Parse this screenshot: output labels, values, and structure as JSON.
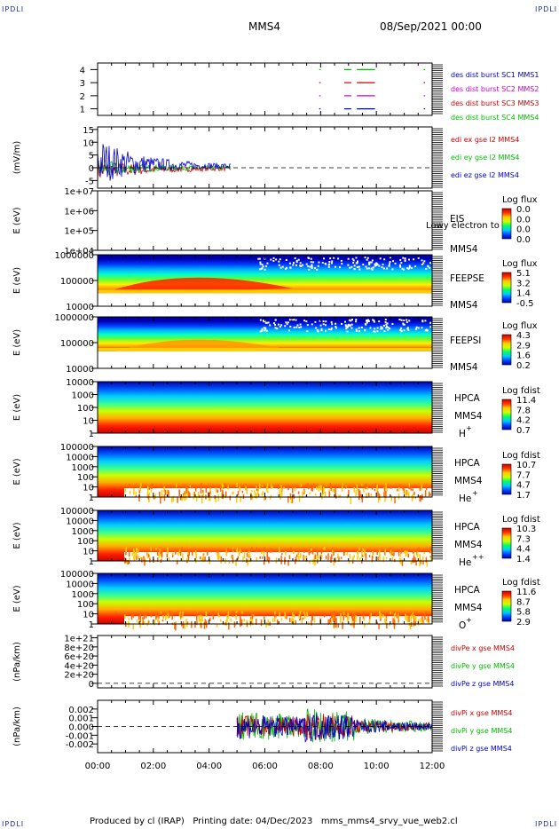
{
  "page": {
    "corner_label": "IPDLI",
    "spacecraft": "MMS4",
    "datetime": "08/Sep/2021 00:00",
    "footer": "Produced by cl (IRAP)   Printing date: 04/Dec/2023   mms_mms4_srvy_vue_web2.cl"
  },
  "chart_data": [
    {
      "id": "burst",
      "type": "scatter",
      "ylim": [
        0.5,
        4.5
      ],
      "yticks": [
        "1",
        "2",
        "3",
        "4"
      ],
      "series": [
        {
          "name": "des dist burst SC1 MMS1",
          "color": "#0000cc",
          "y": 1
        },
        {
          "name": "des dist burst SC2 MMS2",
          "color": "#cc00cc",
          "y": 2
        },
        {
          "name": "des dist burst SC3 MMS3",
          "color": "#cc0000",
          "y": 3
        },
        {
          "name": "des dist burst SC4 MMS4",
          "color": "#00bb00",
          "y": 4
        }
      ],
      "intervals_hours": [
        [
          7.95,
          8.0
        ],
        [
          8.85,
          9.1
        ],
        [
          9.3,
          9.95
        ],
        [
          11.7,
          11.75
        ]
      ]
    },
    {
      "id": "edi",
      "type": "line",
      "ylabel": "(mV/m)",
      "ylim": [
        -8,
        16
      ],
      "yticks": [
        "-5",
        "0",
        "5",
        "10",
        "15"
      ],
      "series": [
        {
          "name": "edi ex gse l2 MMS4",
          "color": "#cc0000"
        },
        {
          "name": "edi ey gse l2 MMS4",
          "color": "#00bb00"
        },
        {
          "name": "edi ez gse l2 MMS4",
          "color": "#0000cc"
        }
      ],
      "data_end_hours": 4.8
    },
    {
      "id": "eis",
      "type": "heatmap",
      "ylabel": "E (eV)",
      "yticks": [
        "1e+04",
        "1e+05",
        "1e+06",
        "1e+07"
      ],
      "labels": [
        "EIS",
        "MMS4"
      ],
      "overlay_text": "Lowy electron to",
      "cb_title": "Log flux",
      "cb_ticks": [
        "0.0",
        "0.0",
        "0.0",
        "0.0"
      ]
    },
    {
      "id": "feepse",
      "type": "heatmap",
      "ylabel": "E (eV)",
      "yticks": [
        "10000",
        "100000",
        "1000000"
      ],
      "labels": [
        "FEEPSE",
        "MMS4"
      ],
      "cb_title": "Log flux",
      "cb_ticks": [
        "5.1",
        "3.2",
        "1.4",
        "-0.5"
      ]
    },
    {
      "id": "feepsi",
      "type": "heatmap",
      "ylabel": "E (eV)",
      "yticks": [
        "10000",
        "100000",
        "1000000"
      ],
      "labels": [
        "FEEPSI",
        "MMS4"
      ],
      "cb_title": "Log flux",
      "cb_ticks": [
        "4.3",
        "2.9",
        "1.6",
        "0.2"
      ]
    },
    {
      "id": "hpca_h",
      "type": "heatmap",
      "ylabel": "E (eV)",
      "yticks": [
        "1",
        "10",
        "100",
        "1000",
        "10000"
      ],
      "labels": [
        "HPCA",
        "MMS4"
      ],
      "species": "H",
      "species_charge": "+",
      "cb_title": "Log fdist",
      "cb_ticks": [
        "11.4",
        "7.8",
        "4.2",
        "0.7"
      ]
    },
    {
      "id": "hpca_he",
      "type": "heatmap",
      "ylabel": "E (eV)",
      "yticks": [
        "1",
        "10",
        "100",
        "1000",
        "10000",
        "100000"
      ],
      "labels": [
        "HPCA",
        "MMS4"
      ],
      "species": "He",
      "species_charge": "+",
      "cb_title": "Log fdist",
      "cb_ticks": [
        "10.7",
        "7.7",
        "4.7",
        "1.7"
      ]
    },
    {
      "id": "hpca_he2",
      "type": "heatmap",
      "ylabel": "E (eV)",
      "yticks": [
        "1",
        "10",
        "100",
        "1000",
        "10000",
        "100000"
      ],
      "labels": [
        "HPCA",
        "MMS4"
      ],
      "species": "He",
      "species_charge": "++",
      "cb_title": "Log fdist",
      "cb_ticks": [
        "10.3",
        "7.3",
        "4.4",
        "1.4"
      ]
    },
    {
      "id": "hpca_o",
      "type": "heatmap",
      "ylabel": "E (eV)",
      "yticks": [
        "1",
        "10",
        "100",
        "1000",
        "10000",
        "100000"
      ],
      "labels": [
        "HPCA",
        "MMS4"
      ],
      "species": "O",
      "species_charge": "+",
      "cb_title": "Log fdist",
      "cb_ticks": [
        "11.6",
        "8.7",
        "5.8",
        "2.9"
      ]
    },
    {
      "id": "divpe",
      "type": "line",
      "ylabel": "(nPa/km)",
      "ylim": [
        -1e+20,
        1.05e+21
      ],
      "yticks": [
        "0",
        "2e+20",
        "4e+20",
        "6e+20",
        "8e+20",
        "1e+21"
      ],
      "series": [
        {
          "name": "divPe x gse MMS4",
          "color": "#cc0000"
        },
        {
          "name": "divPe y gse MMS4",
          "color": "#00bb00"
        },
        {
          "name": "divPe z gse MMS4",
          "color": "#0000cc"
        }
      ]
    },
    {
      "id": "divpi",
      "type": "line",
      "ylabel": "(nPa/km)",
      "ylim": [
        -0.003,
        0.003
      ],
      "yticks": [
        "-0.002",
        "-0.001",
        "0.000",
        "0.001",
        "0.002"
      ],
      "series": [
        {
          "name": "divPi x gse MMS4",
          "color": "#cc0000"
        },
        {
          "name": "divPi y gse MMS4",
          "color": "#00bb00"
        },
        {
          "name": "divPi z gse MMS4",
          "color": "#0000cc"
        }
      ],
      "data_start_hours": 5.0
    }
  ],
  "x_axis": {
    "ticks": [
      "00:00",
      "02:00",
      "04:00",
      "06:00",
      "08:00",
      "10:00",
      "12:00"
    ],
    "xlim_hours": [
      0,
      12
    ]
  },
  "colors": {
    "colorbar_stops": [
      "#0000aa",
      "#0044ff",
      "#00ccff",
      "#00ff66",
      "#ccff00",
      "#ffcc00",
      "#ff3300",
      "#cc0000"
    ]
  }
}
